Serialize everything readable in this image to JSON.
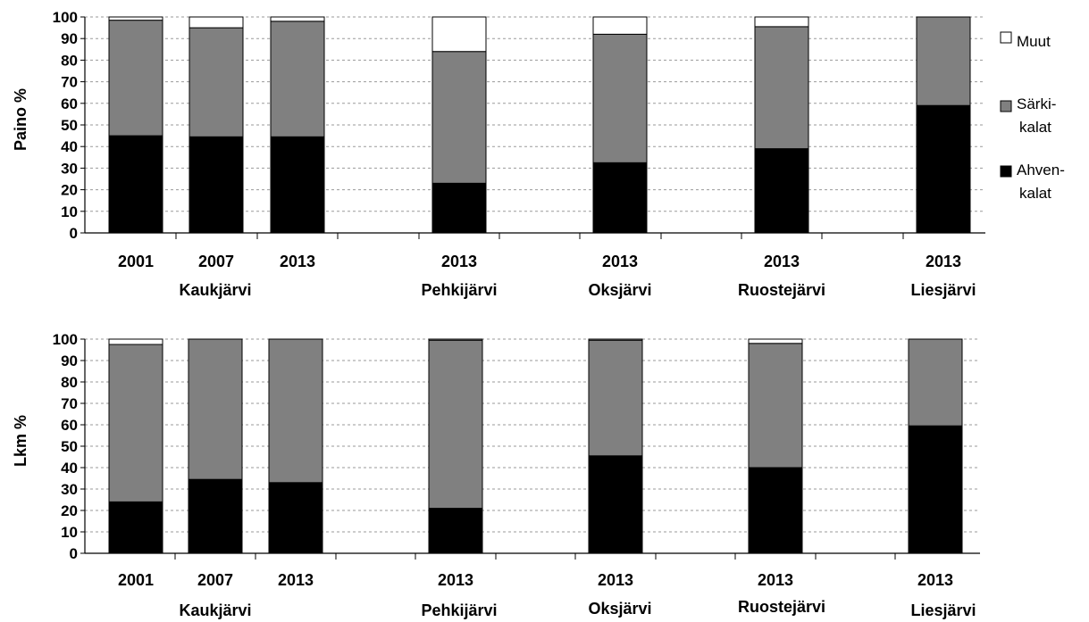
{
  "chart_data": [
    {
      "type": "bar",
      "stacked": true,
      "ylabel": "Paino %",
      "ylim": [
        0,
        100
      ],
      "ytick_step": 10,
      "grid": "horizontal dashed",
      "categories": [
        {
          "year": "2001",
          "lake": "Kaukjärvi"
        },
        {
          "year": "2007",
          "lake": ""
        },
        {
          "year": "2013",
          "lake": ""
        },
        {
          "year": "2013",
          "lake": "Pehkijärvi"
        },
        {
          "year": "2013",
          "lake": "Oksjärvi"
        },
        {
          "year": "2013",
          "lake": "Ruostejärvi"
        },
        {
          "year": "2013",
          "lake": "Liesjärvi"
        }
      ],
      "series": [
        {
          "name": "Ahven-kalat",
          "color": "#000000",
          "values": [
            45,
            44.5,
            44.5,
            23,
            32.5,
            39,
            59
          ]
        },
        {
          "name": "Särki-kalat",
          "color": "#808080",
          "values": [
            53.5,
            50.5,
            53.5,
            61,
            59.5,
            56.5,
            41
          ]
        },
        {
          "name": "Muut",
          "color": "#ffffff",
          "values": [
            1.5,
            5,
            2,
            16,
            8,
            4.5,
            0
          ]
        }
      ]
    },
    {
      "type": "bar",
      "stacked": true,
      "ylabel": "Lkm %",
      "ylim": [
        0,
        100
      ],
      "ytick_step": 10,
      "grid": "horizontal dashed",
      "categories": [
        {
          "year": "2001",
          "lake": "Kaukjärvi"
        },
        {
          "year": "2007",
          "lake": ""
        },
        {
          "year": "2013",
          "lake": ""
        },
        {
          "year": "2013",
          "lake": "Pehkijärvi"
        },
        {
          "year": "2013",
          "lake": "Oksjärvi"
        },
        {
          "year": "2013",
          "lake": "Ruostejärvi"
        },
        {
          "year": "2013",
          "lake": "Liesjärvi"
        }
      ],
      "series": [
        {
          "name": "Ahven-kalat",
          "color": "#000000",
          "values": [
            24,
            34.5,
            33,
            21,
            45.5,
            40,
            59.5
          ]
        },
        {
          "name": "Särki-kalat",
          "color": "#808080",
          "values": [
            73.5,
            65.5,
            67,
            78.5,
            54,
            58,
            40.5
          ]
        },
        {
          "name": "Muut",
          "color": "#ffffff",
          "values": [
            2.5,
            0,
            0,
            0.5,
            0.5,
            2,
            0
          ]
        }
      ]
    }
  ],
  "legend": {
    "position": "right of top chart",
    "items": [
      {
        "line1": "Muut",
        "line2": "",
        "color": "#ffffff"
      },
      {
        "line1": "Särki-",
        "line2": "kalat",
        "color": "#808080"
      },
      {
        "line1": "Ahven-",
        "line2": "kalat",
        "color": "#000000"
      }
    ]
  }
}
